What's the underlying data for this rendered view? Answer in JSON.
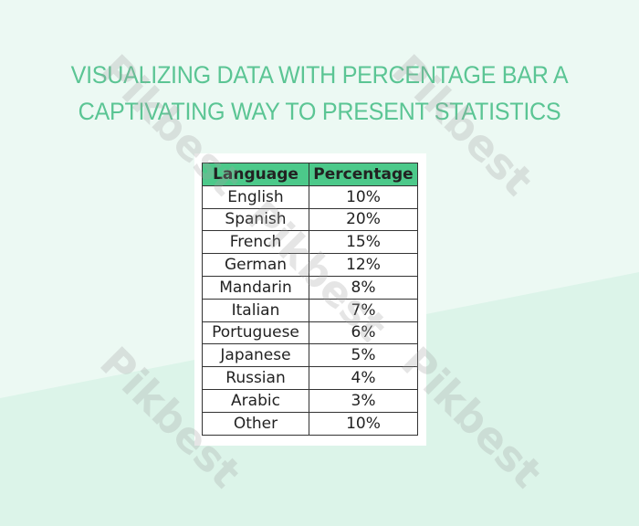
{
  "title_lines": [
    "VISUALIZING DATA WITH PERCENTAGE BAR A",
    "CAPTIVATING WAY TO PRESENT STATISTICS"
  ],
  "table": {
    "headers": [
      "Language",
      "Percentage"
    ],
    "rows": [
      [
        "English",
        "10%"
      ],
      [
        "Spanish",
        "20%"
      ],
      [
        "French",
        "15%"
      ],
      [
        "German",
        "12%"
      ],
      [
        "Mandarin",
        "8%"
      ],
      [
        "Italian",
        "7%"
      ],
      [
        "Portuguese",
        "6%"
      ],
      [
        "Japanese",
        "5%"
      ],
      [
        "Russian",
        "4%"
      ],
      [
        "Arabic",
        "3%"
      ],
      [
        "Other",
        "10%"
      ]
    ]
  },
  "watermark": "Pikbest",
  "colors": {
    "accent": "#5bc594",
    "header_bg": "#4cc98a",
    "background": "#ecf9f3"
  }
}
